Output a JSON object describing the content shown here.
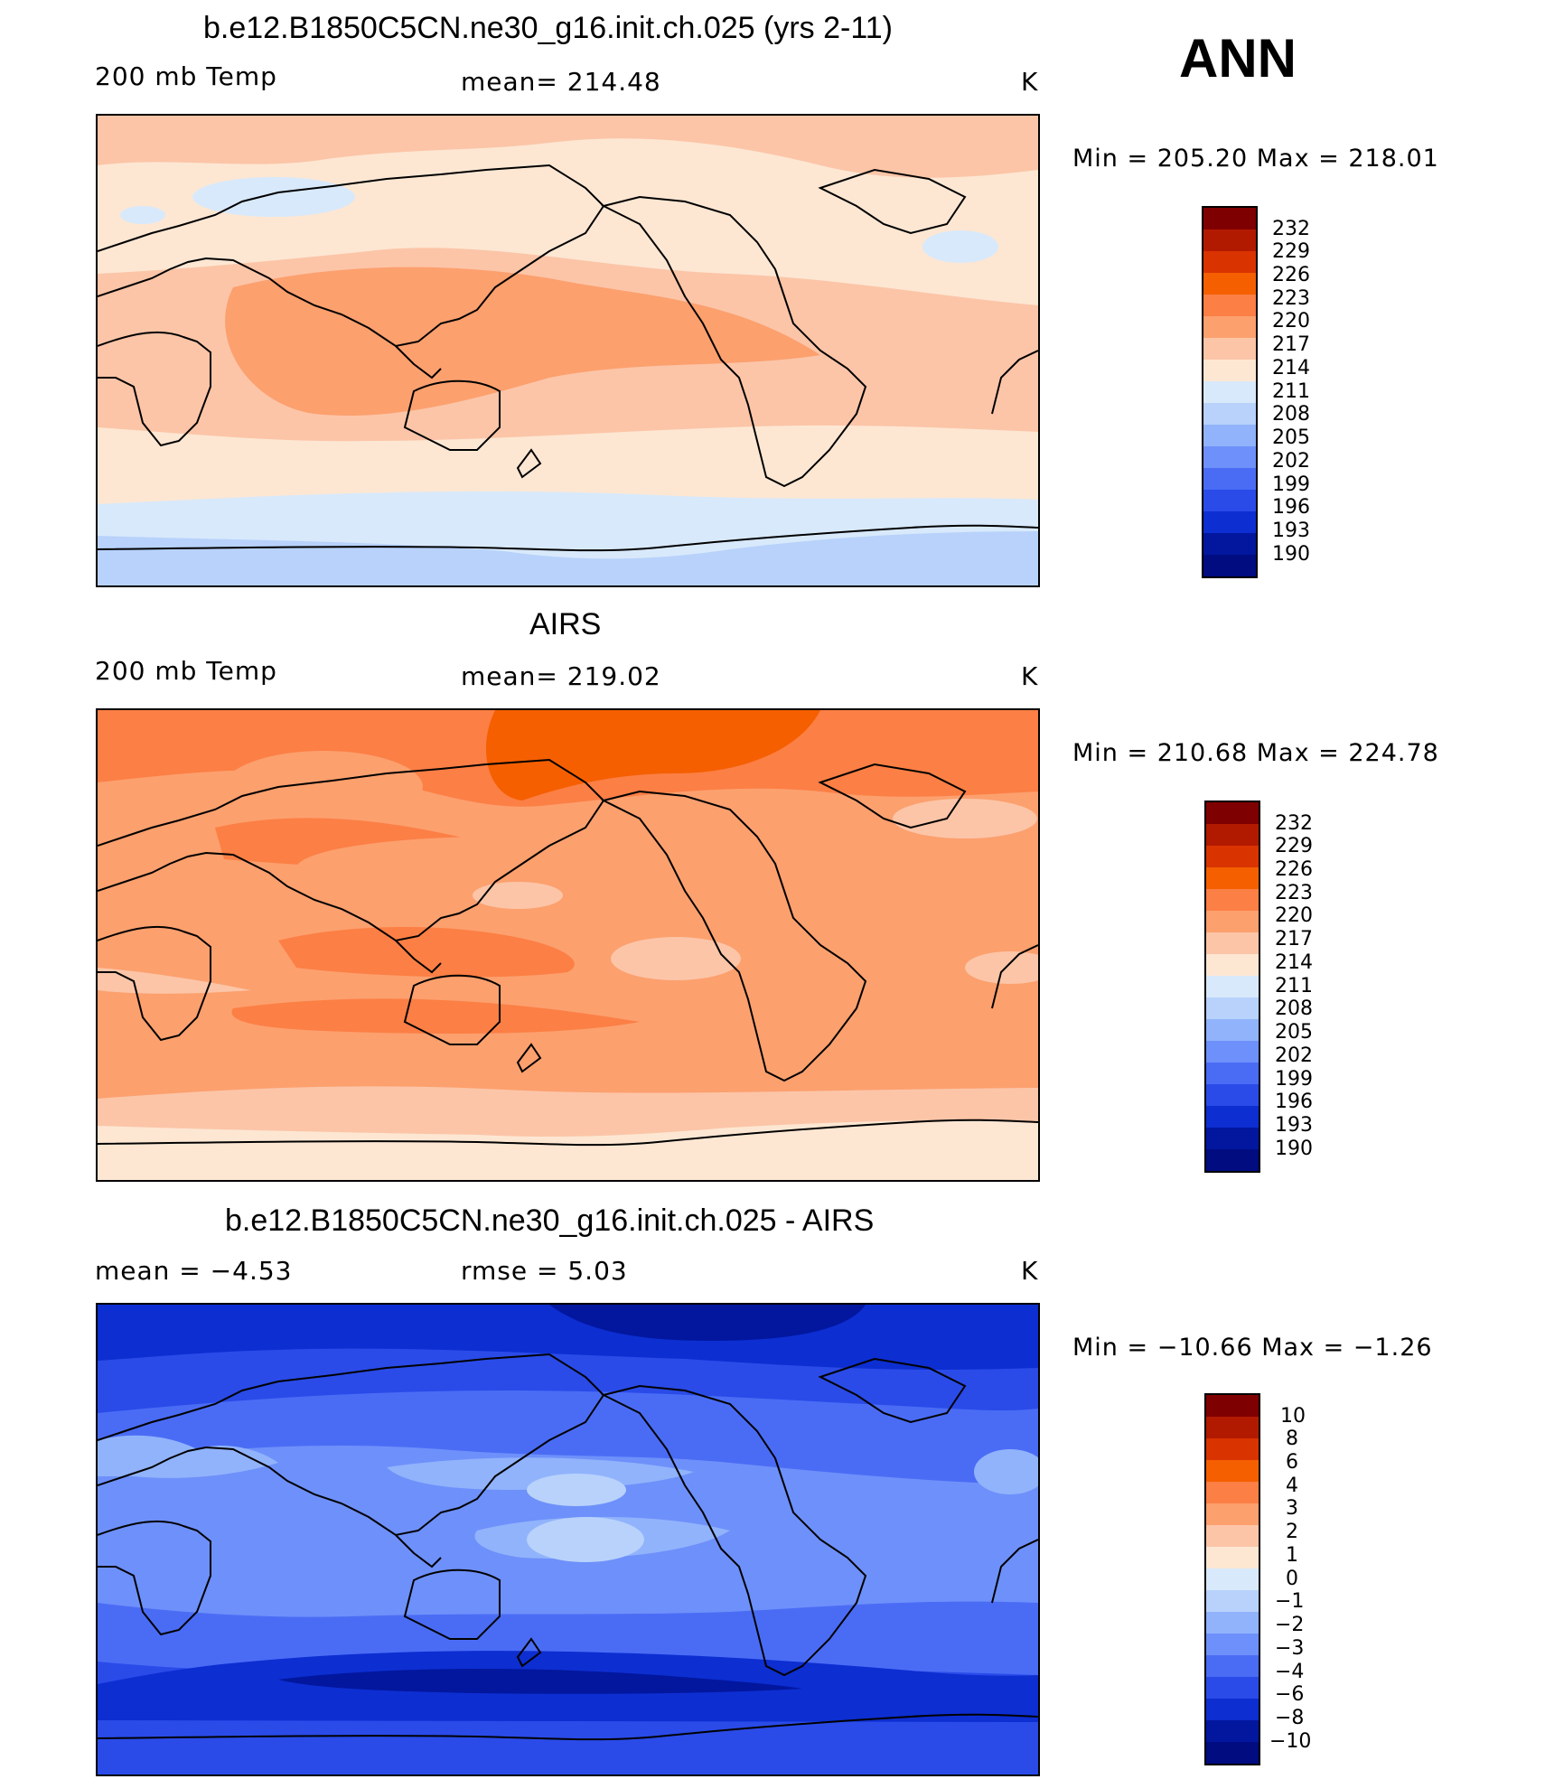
{
  "season": "ANN",
  "panels": [
    {
      "title": "b.e12.B1850C5CN.ne30_g16.init.ch.025 (yrs 2-11)",
      "left": "200 mb Temp",
      "center": "mean=  214.48",
      "right": "K",
      "minmax": "Min  =  205.20  Max  =  218.01",
      "colorbar_labels": [
        "232",
        "229",
        "226",
        "223",
        "220",
        "217",
        "214",
        "211",
        "208",
        "205",
        "202",
        "199",
        "196",
        "193",
        "190"
      ]
    },
    {
      "title": "AIRS",
      "left": "200 mb Temp",
      "center": "mean=  219.02",
      "right": "K",
      "minmax": "Min  =  210.68  Max  =  224.78",
      "colorbar_labels": [
        "232",
        "229",
        "226",
        "223",
        "220",
        "217",
        "214",
        "211",
        "208",
        "205",
        "202",
        "199",
        "196",
        "193",
        "190"
      ]
    },
    {
      "title": "b.e12.B1850C5CN.ne30_g16.init.ch.025 - AIRS",
      "left": "mean  =    −4.53",
      "center": "rmse  =     5.03",
      "right": "K",
      "minmax": "Min  =  −10.66  Max  =    −1.26",
      "colorbar_labels": [
        "10",
        "8",
        "6",
        "4",
        "3",
        "2",
        "1",
        "0",
        "−1",
        "−2",
        "−3",
        "−4",
        "−6",
        "−8",
        "−10"
      ]
    }
  ],
  "colors": {
    "palette": [
      "#7f0000",
      "#b21a00",
      "#d93300",
      "#f55f00",
      "#fc7f45",
      "#fca06e",
      "#fcc5a8",
      "#fde7d3",
      "#d8e9fb",
      "#b8d2fb",
      "#91b3fc",
      "#6e90fa",
      "#4a6cf5",
      "#2a4be8",
      "#0d2ed1",
      "#02179e",
      "#000c80"
    ]
  }
}
